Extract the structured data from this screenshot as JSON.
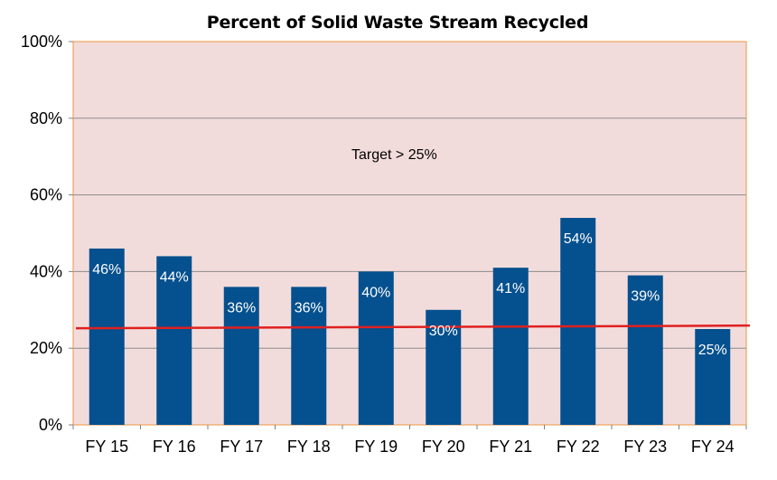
{
  "chart_data": {
    "type": "bar",
    "title": "Percent of Solid Waste Stream Recycled",
    "xlabel": "",
    "ylabel": "",
    "categories": [
      "FY 15",
      "FY 16",
      "FY 17",
      "FY 18",
      "FY 19",
      "FY 20",
      "FY 21",
      "FY 22",
      "FY 23",
      "FY 24"
    ],
    "values": [
      46,
      44,
      36,
      36,
      40,
      30,
      41,
      54,
      39,
      25
    ],
    "data_labels": [
      "46%",
      "44%",
      "36%",
      "36%",
      "40%",
      "30%",
      "41%",
      "54%",
      "39%",
      "25%"
    ],
    "ylim": [
      0,
      100
    ],
    "yticks": [
      0,
      20,
      40,
      60,
      80,
      100
    ],
    "ytick_labels": [
      "0%",
      "20%",
      "40%",
      "60%",
      "80%",
      "100%"
    ],
    "grid": true,
    "annotation": "Target > 25%",
    "target_line": {
      "start_value": 25.2,
      "end_value": 25.9
    },
    "colors": {
      "bar": "#05508E",
      "plot_background": "#F2DCDB",
      "plot_border": "#F0A35E",
      "gridline": "#8C8C8C",
      "target_line": "#E02020",
      "data_label": "#FFFFFF",
      "text": "#000000"
    }
  }
}
